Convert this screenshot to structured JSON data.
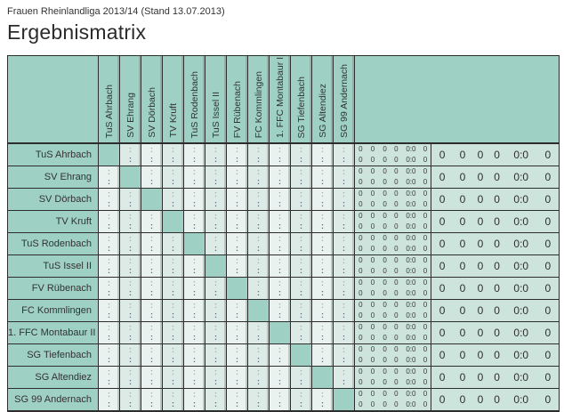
{
  "page": {
    "subtitle": "Frauen Rheinlandliga 2013/14 (Stand 13.07.2013)",
    "title": "Ergebnismatrix"
  },
  "matrix": {
    "teams": [
      "TuS Ahrbach",
      "SV Ehrang",
      "SV Dörbach",
      "TV Kruft",
      "TuS Rodenbach",
      "TuS Issel II",
      "FV Rübenach",
      "FC Kommlingen",
      "1. FFC Montabaur II",
      "SG Tiefenbach",
      "SG Altendiez",
      "SG 99 Andernach"
    ],
    "cell": {
      "top": ":",
      "bottom": ":"
    }
  },
  "stats": {
    "small_rows": [
      [
        "0",
        "0",
        "0",
        "0",
        "0:0",
        "0"
      ],
      [
        "0",
        "0",
        "0",
        "0",
        "0:0",
        "0"
      ]
    ],
    "total_row": [
      "0",
      "0",
      "0",
      "0",
      "0:0",
      "0"
    ]
  },
  "colors": {
    "teal": "#9ed0c3",
    "cell_light": "#e9f2ee",
    "cell_alt": "#dcebe5",
    "summary_bg": "#cde4dd",
    "grid": "#2d2d2d",
    "colon_top": "#a3aeae",
    "colon_bottom": "#5c6b85",
    "text": "#333333"
  }
}
